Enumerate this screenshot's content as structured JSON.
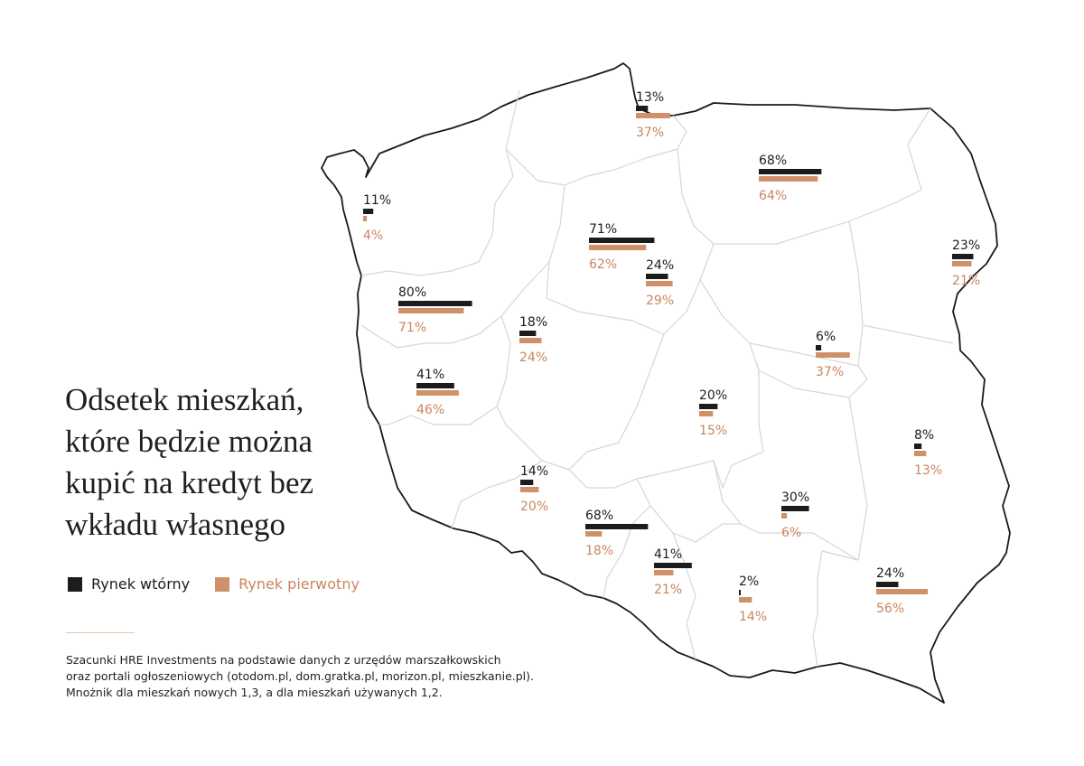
{
  "title_lines": [
    "Odsetek mieszkań,",
    "które będzie można",
    "kupić na kredyt bez",
    "wkładu własnego"
  ],
  "legend": {
    "secondary": "Rynek wtórny",
    "primary": "Rynek pierwotny"
  },
  "source_lines": [
    "Szacunki HRE Investments na podstawie danych z urzędów marszałkowskich",
    "oraz portali ogłoszeniowych (otodom.pl, dom.gratka.pl, morizon.pl, mieszkanie.pl).",
    "Mnożnik dla mieszkań nowych 1,3, a dla mieszkań używanych 1,2."
  ],
  "colors": {
    "secondary": "#1c1c1c",
    "primary": "#d0916a",
    "primary_text": "#c9855e",
    "border": "#1a1a1a",
    "inner_border": "#d6d6d6"
  },
  "chart_data": {
    "type": "bar",
    "value_unit": "%",
    "series": [
      {
        "name": "Rynek wtórny",
        "key": "secondary"
      },
      {
        "name": "Rynek pierwotny",
        "key": "primary"
      }
    ],
    "markers": [
      {
        "secondary": 13,
        "primary": 37,
        "secondary_label": "13%",
        "primary_label": "37%"
      },
      {
        "secondary": 11,
        "primary": 4,
        "secondary_label": "11%",
        "primary_label": "4%"
      },
      {
        "secondary": 68,
        "primary": 64,
        "secondary_label": "68%",
        "primary_label": "64%"
      },
      {
        "secondary": 71,
        "primary": 62,
        "secondary_label": "71%",
        "primary_label": "62%"
      },
      {
        "secondary": 24,
        "primary": 29,
        "secondary_label": "24%",
        "primary_label": "29%"
      },
      {
        "secondary": 23,
        "primary": 21,
        "secondary_label": "23%",
        "primary_label": "21%"
      },
      {
        "secondary": 80,
        "primary": 71,
        "secondary_label": "80%",
        "primary_label": "71%"
      },
      {
        "secondary": 18,
        "primary": 24,
        "secondary_label": "18%",
        "primary_label": "24%"
      },
      {
        "secondary": 6,
        "primary": 37,
        "secondary_label": "6%",
        "primary_label": "37%"
      },
      {
        "secondary": 41,
        "primary": 46,
        "secondary_label": "41%",
        "primary_label": "46%"
      },
      {
        "secondary": 20,
        "primary": 15,
        "secondary_label": "20%",
        "primary_label": "15%"
      },
      {
        "secondary": 8,
        "primary": 13,
        "secondary_label": "8%",
        "primary_label": "13%"
      },
      {
        "secondary": 14,
        "primary": 20,
        "secondary_label": "14%",
        "primary_label": "20%"
      },
      {
        "secondary": 30,
        "primary": 6,
        "secondary_label": "30%",
        "primary_label": "6%"
      },
      {
        "secondary": 68,
        "primary": 18,
        "secondary_label": "68%",
        "primary_label": "18%"
      },
      {
        "secondary": 41,
        "primary": 21,
        "secondary_label": "41%",
        "primary_label": "21%"
      },
      {
        "secondary": 2,
        "primary": 14,
        "secondary_label": "2%",
        "primary_label": "14%"
      },
      {
        "secondary": 24,
        "primary": 56,
        "secondary_label": "24%",
        "primary_label": "56%"
      }
    ]
  }
}
